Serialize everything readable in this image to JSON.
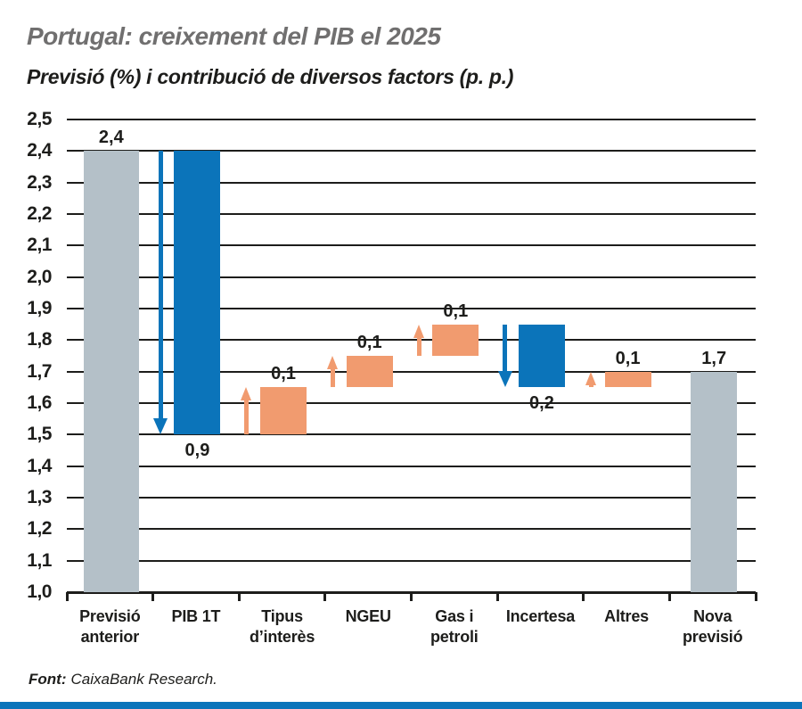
{
  "title": "Portugal: creixement del PIB el 2025",
  "subtitle": "Previsió (%) i contribució de diversos factors (p. p.)",
  "footer": {
    "source_label": "Font:",
    "source_text": "CaixaBank Research."
  },
  "colors": {
    "blue": "#0b74ba",
    "orange": "#f19b6f",
    "gray": "#b4c0c8",
    "title_gray": "#706f6f",
    "text": "#1d1d1b",
    "bottom_bar": "#0b74ba"
  },
  "chart_data": {
    "type": "bar",
    "subtype": "waterfall",
    "title": "Portugal: creixement del PIB el 2025",
    "ylabel": "Previsió (%) i contribució de diversos factors (p. p.)",
    "ylim": [
      1.0,
      2.5
    ],
    "grid": true,
    "y_ticks": [
      "2,5",
      "2,4",
      "2,3",
      "2,2",
      "2,1",
      "2,0",
      "1,9",
      "1,8",
      "1,7",
      "1,6",
      "1,5",
      "1,4",
      "1,3",
      "1,2",
      "1,1",
      "1,0"
    ],
    "categories": [
      "Previsió anterior",
      "PIB 1T",
      "Tipus d’interès",
      "NGEU",
      "Gas i petroli",
      "Incertesa",
      "Altres",
      "Nova previsió"
    ],
    "bars": [
      {
        "name": "Previsió anterior",
        "lines": [
          "Previsió",
          "anterior"
        ],
        "from": 1.0,
        "to": 2.4,
        "value_label": "2,4",
        "label_position": "above",
        "color": "gray",
        "arrow": null
      },
      {
        "name": "PIB 1T",
        "lines": [
          "PIB 1T"
        ],
        "from": 2.4,
        "to": 1.5,
        "value_label": "0,9",
        "label_position": "below",
        "color": "blue",
        "arrow": "down"
      },
      {
        "name": "Tipus d’interès",
        "lines": [
          "Tipus",
          "d’interès"
        ],
        "from": 1.5,
        "to": 1.65,
        "value_label": "0,1",
        "label_position": "above",
        "color": "orange",
        "arrow": "up"
      },
      {
        "name": "NGEU",
        "lines": [
          "NGEU"
        ],
        "from": 1.65,
        "to": 1.75,
        "value_label": "0,1",
        "label_position": "above",
        "color": "orange",
        "arrow": "up"
      },
      {
        "name": "Gas i petroli",
        "lines": [
          "Gas i",
          "petroli"
        ],
        "from": 1.75,
        "to": 1.85,
        "value_label": "0,1",
        "label_position": "above",
        "color": "orange",
        "arrow": "up"
      },
      {
        "name": "Incertesa",
        "lines": [
          "Incertesa"
        ],
        "from": 1.85,
        "to": 1.65,
        "value_label": "0,2",
        "label_position": "below",
        "color": "blue",
        "arrow": "down"
      },
      {
        "name": "Altres",
        "lines": [
          "Altres"
        ],
        "from": 1.65,
        "to": 1.7,
        "value_label": "0,1",
        "label_position": "above",
        "color": "orange",
        "arrow": "up"
      },
      {
        "name": "Nova previsió",
        "lines": [
          "Nova",
          "previsió"
        ],
        "from": 1.0,
        "to": 1.7,
        "value_label": "1,7",
        "label_position": "above",
        "color": "gray",
        "arrow": null
      }
    ]
  }
}
